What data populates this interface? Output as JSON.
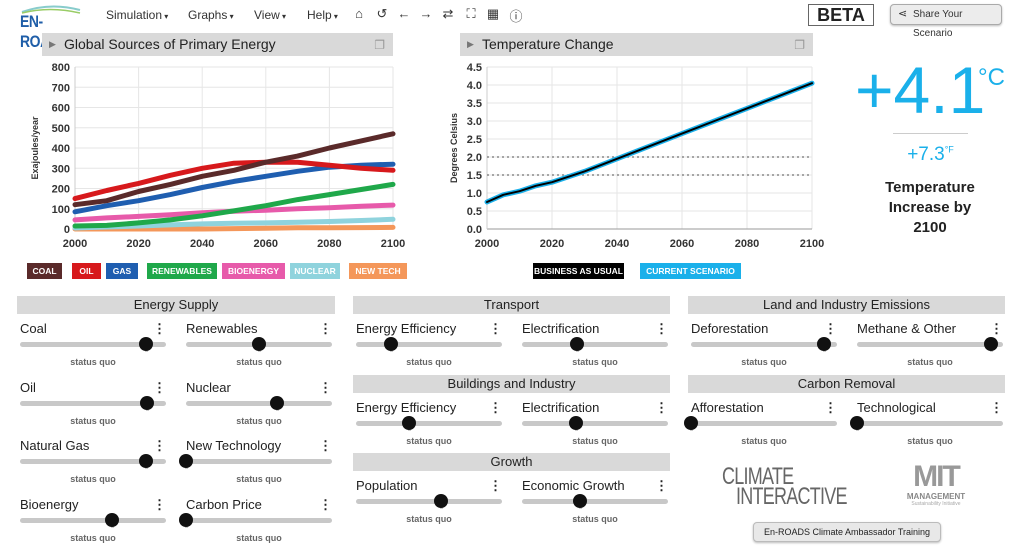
{
  "app": {
    "logo": "EN-ROADS",
    "beta": "BETA",
    "share_label": "Share Your Scenario",
    "training_label": "En-ROADS Climate Ambassador Training"
  },
  "menus": [
    "Simulation",
    "Graphs",
    "View",
    "Help"
  ],
  "toolbar_icons": [
    "home-icon",
    "undo-icon",
    "back-icon",
    "forward-icon",
    "repeat-icon",
    "fullscreen-icon",
    "table-icon",
    "info-icon"
  ],
  "energy_chart_title": "Global Sources of Primary Energy",
  "temp_chart_title": "Temperature Change",
  "chart_data": [
    {
      "type": "line",
      "title": "Global Sources of Primary Energy",
      "xlabel": "",
      "ylabel": "Exajoules/year",
      "xlim": [
        2000,
        2100
      ],
      "ylim": [
        0,
        800
      ],
      "xticks": [
        2000,
        2020,
        2040,
        2060,
        2080,
        2100
      ],
      "yticks": [
        0,
        100,
        200,
        300,
        400,
        500,
        600,
        700,
        800
      ],
      "grid": true,
      "legend": "bottom",
      "x": [
        2000,
        2010,
        2020,
        2030,
        2040,
        2050,
        2060,
        2070,
        2080,
        2090,
        2100
      ],
      "series": [
        {
          "name": "COAL",
          "color": "#5a2a2a",
          "values": [
            120,
            140,
            185,
            220,
            260,
            290,
            330,
            360,
            400,
            435,
            470
          ]
        },
        {
          "name": "OIL",
          "color": "#d7191c",
          "values": [
            150,
            190,
            225,
            265,
            300,
            325,
            330,
            330,
            315,
            300,
            290
          ]
        },
        {
          "name": "GAS",
          "color": "#1f5eb0",
          "values": [
            85,
            115,
            140,
            170,
            205,
            235,
            260,
            285,
            305,
            315,
            320
          ]
        },
        {
          "name": "RENEWABLES",
          "color": "#1fa84a",
          "values": [
            15,
            18,
            30,
            45,
            65,
            90,
            115,
            145,
            170,
            195,
            220
          ]
        },
        {
          "name": "BIOENERGY",
          "color": "#e75aaa",
          "values": [
            45,
            55,
            62,
            70,
            80,
            88,
            93,
            100,
            105,
            112,
            118
          ]
        },
        {
          "name": "NUCLEAR",
          "color": "#8fd3dd",
          "values": [
            5,
            10,
            15,
            20,
            25,
            28,
            30,
            33,
            37,
            42,
            48
          ]
        },
        {
          "name": "NEW TECH",
          "color": "#f4975a",
          "values": [
            0,
            0,
            0,
            0,
            0,
            2,
            4,
            6,
            6,
            7,
            8
          ]
        }
      ]
    },
    {
      "type": "line",
      "title": "Temperature Change",
      "xlabel": "",
      "ylabel": "Degrees Celsius",
      "xlim": [
        2000,
        2100
      ],
      "ylim": [
        0,
        4.5
      ],
      "xticks": [
        2000,
        2020,
        2040,
        2060,
        2080,
        2100
      ],
      "yticks": [
        "0.0",
        "0.5",
        "1.0",
        "1.5",
        "2.0",
        "2.5",
        "3.0",
        "3.5",
        "4.0",
        "4.5"
      ],
      "grid": true,
      "legend": "bottom",
      "reference_lines": [
        1.5,
        2.0
      ],
      "x": [
        2000,
        2005,
        2010,
        2015,
        2020,
        2030,
        2040,
        2050,
        2060,
        2070,
        2080,
        2090,
        2100
      ],
      "series": [
        {
          "name": "BUSINESS AS USUAL",
          "color": "#000000",
          "values": [
            0.75,
            0.95,
            1.05,
            1.2,
            1.3,
            1.6,
            1.95,
            2.3,
            2.65,
            3.0,
            3.35,
            3.7,
            4.05
          ]
        },
        {
          "name": "CURRENT SCENARIO",
          "color": "#1ab0ea",
          "values": [
            0.75,
            0.95,
            1.05,
            1.2,
            1.3,
            1.6,
            1.95,
            2.3,
            2.65,
            3.0,
            3.35,
            3.7,
            4.05
          ]
        }
      ]
    }
  ],
  "result": {
    "celsius": "+4.1",
    "celsius_unit": "°C",
    "fahrenheit": "+7.3",
    "fahrenheit_unit": "°F",
    "caption": "Temperature Increase by 2100"
  },
  "sections": [
    {
      "title": "Energy Supply",
      "items": [
        {
          "label": "Coal",
          "value": 0.86,
          "status": "status quo"
        },
        {
          "label": "Renewables",
          "value": 0.5,
          "status": "status quo"
        },
        {
          "label": "Oil",
          "value": 0.87,
          "status": "status quo"
        },
        {
          "label": "Nuclear",
          "value": 0.62,
          "status": "status quo"
        },
        {
          "label": "Natural Gas",
          "value": 0.86,
          "status": "status quo"
        },
        {
          "label": "New Technology",
          "value": 0,
          "status": "status quo"
        },
        {
          "label": "Bioenergy",
          "value": 0.63,
          "status": "status quo"
        },
        {
          "label": "Carbon Price",
          "value": 0,
          "status": "status quo"
        }
      ]
    },
    {
      "title": "Transport",
      "items": [
        {
          "label": "Energy Efficiency",
          "value": 0.24,
          "status": "status quo"
        },
        {
          "label": "Electrification",
          "value": 0.38,
          "status": "status quo"
        }
      ]
    },
    {
      "title": "Buildings and Industry",
      "items": [
        {
          "label": "Energy Efficiency",
          "value": 0.36,
          "status": "status quo"
        },
        {
          "label": "Electrification",
          "value": 0.37,
          "status": "status quo"
        }
      ]
    },
    {
      "title": "Growth",
      "items": [
        {
          "label": "Population",
          "value": 0.58,
          "status": "status quo"
        },
        {
          "label": "Economic Growth",
          "value": 0.4,
          "status": "status quo"
        }
      ]
    },
    {
      "title": "Land and Industry Emissions",
      "items": [
        {
          "label": "Deforestation",
          "value": 0.91,
          "status": "status quo"
        },
        {
          "label": "Methane & Other",
          "value": 0.92,
          "status": "status quo"
        }
      ]
    },
    {
      "title": "Carbon Removal",
      "items": [
        {
          "label": "Afforestation",
          "value": 0,
          "status": "status quo"
        },
        {
          "label": "Technological",
          "value": 0,
          "status": "status quo"
        }
      ]
    }
  ],
  "logos": {
    "climate_interactive": [
      "CLIMATE",
      "INTERACTIVE"
    ],
    "mit": [
      "MIT",
      "MANAGEMENT",
      "Sustainability Initiative"
    ]
  }
}
